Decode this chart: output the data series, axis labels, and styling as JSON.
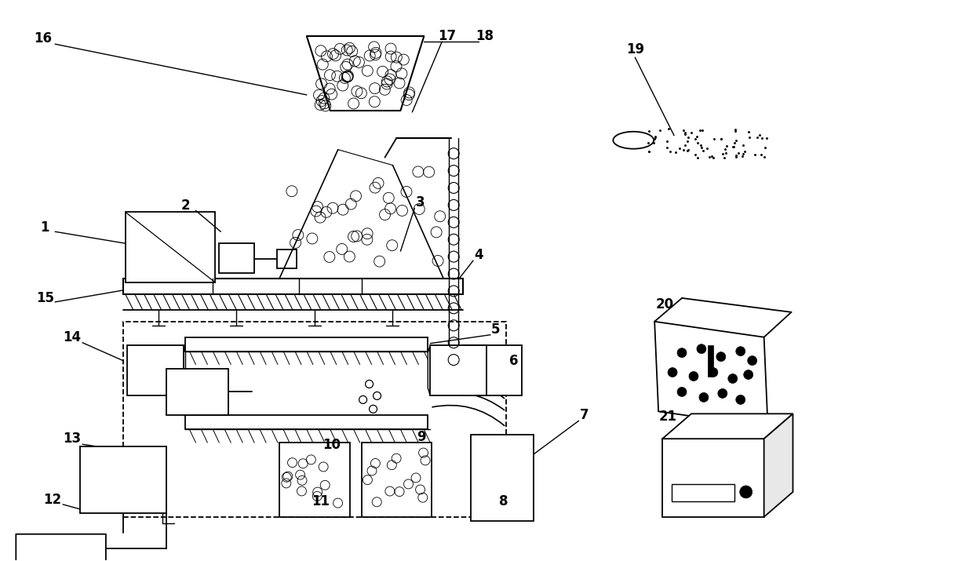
{
  "bg_color": "#ffffff",
  "line_color": "#000000",
  "fig_width": 12.4,
  "fig_height": 7.15,
  "dpi": 100
}
